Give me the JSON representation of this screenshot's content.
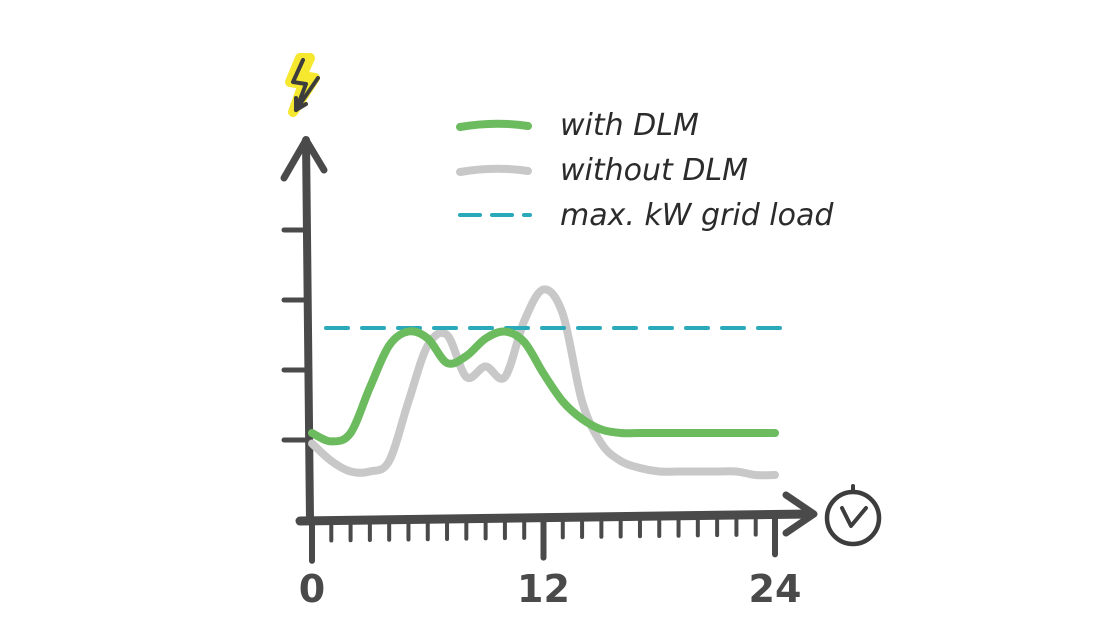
{
  "chart_data": {
    "type": "line",
    "title": "",
    "xlabel": "",
    "ylabel": "",
    "xlim": [
      0,
      24
    ],
    "ylim": [
      0,
      6
    ],
    "x_ticks": [
      0,
      12,
      24
    ],
    "x_tick_labels": [
      "0",
      "12",
      "24"
    ],
    "x_minor_tick_count": 25,
    "y_ticks": [
      1,
      2,
      3,
      4
    ],
    "axis_icons": {
      "y": "lightning-bolt-icon",
      "x": "clock-icon"
    },
    "legend_position": "top-right",
    "max_grid_load": 2.6,
    "series": [
      {
        "name": "with DLM",
        "color": "#6dbb5f",
        "style": "solid",
        "x": [
          0,
          1,
          2,
          3,
          4,
          5,
          6,
          7,
          8,
          9,
          10,
          11,
          12,
          13,
          14,
          15,
          16,
          17,
          18,
          19,
          20,
          21,
          22,
          23,
          24
        ],
        "y": [
          1.1,
          0.98,
          1.1,
          1.75,
          2.35,
          2.55,
          2.45,
          2.1,
          2.2,
          2.45,
          2.55,
          2.4,
          1.95,
          1.55,
          1.3,
          1.15,
          1.1,
          1.1,
          1.1,
          1.1,
          1.1,
          1.1,
          1.1,
          1.1,
          1.1
        ]
      },
      {
        "name": "without DLM",
        "color": "#c8c8c8",
        "style": "solid",
        "x": [
          0,
          1,
          2,
          3,
          4,
          5,
          6,
          7,
          8,
          9,
          10,
          11,
          12,
          13,
          14,
          15,
          16,
          17,
          18,
          19,
          20,
          21,
          22,
          23,
          24
        ],
        "y": [
          0.95,
          0.7,
          0.55,
          0.55,
          0.7,
          1.55,
          2.35,
          2.5,
          1.9,
          2.05,
          1.9,
          2.7,
          3.15,
          2.8,
          1.55,
          0.95,
          0.7,
          0.6,
          0.55,
          0.55,
          0.55,
          0.55,
          0.55,
          0.5,
          0.5
        ]
      },
      {
        "name": "max. kW grid load",
        "color": "#2aa9ba",
        "style": "dashed",
        "x": [
          0,
          24
        ],
        "y": [
          2.6,
          2.6
        ]
      }
    ]
  }
}
